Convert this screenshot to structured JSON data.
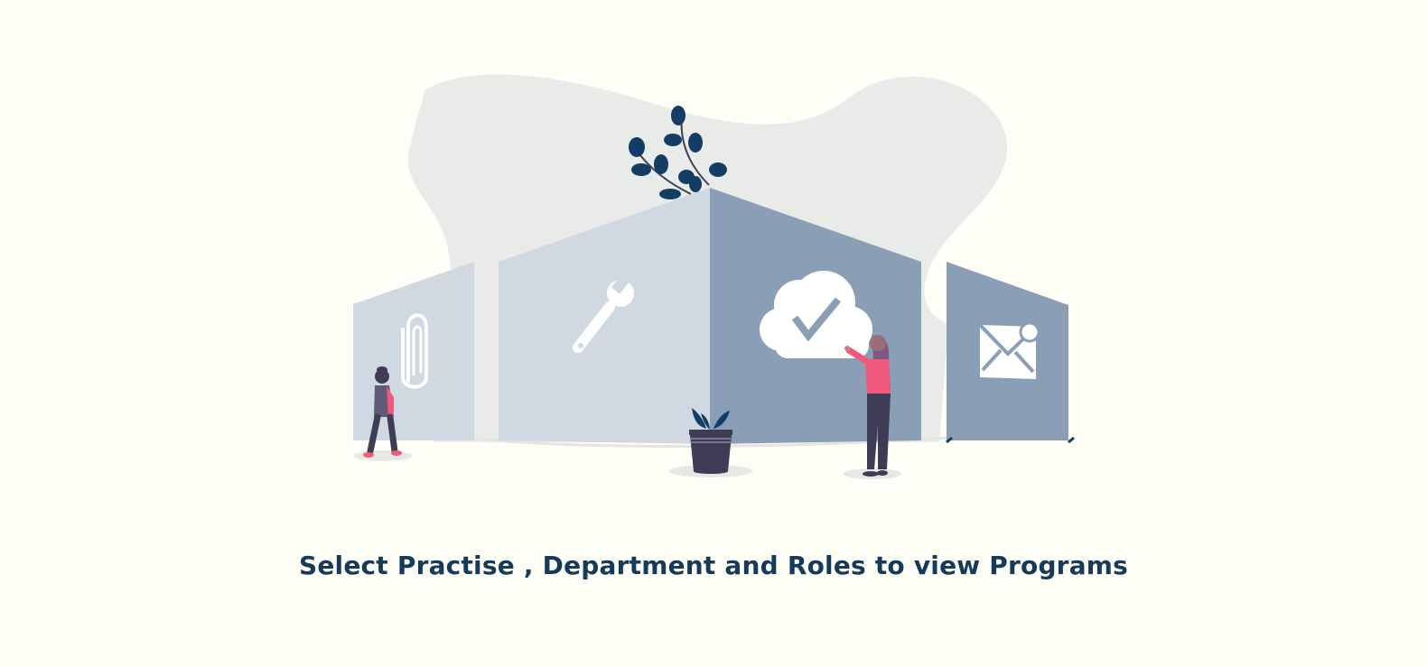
{
  "empty_state": {
    "message": "Select Practise , Department and Roles to view Programs",
    "illustration": {
      "icons": [
        "paperclip-icon",
        "wrench-icon",
        "cloud-check-icon",
        "envelope-icon"
      ],
      "colors": {
        "background": "#fefef6",
        "blob": "#e8ebe7",
        "panel_light": "#d0d8e2",
        "panel_dark": "#8a9fb5",
        "leaf": "#143d66",
        "accent_pink": "#f0597b",
        "dark_figure": "#3f3d56",
        "text": "#163a5a"
      }
    }
  }
}
